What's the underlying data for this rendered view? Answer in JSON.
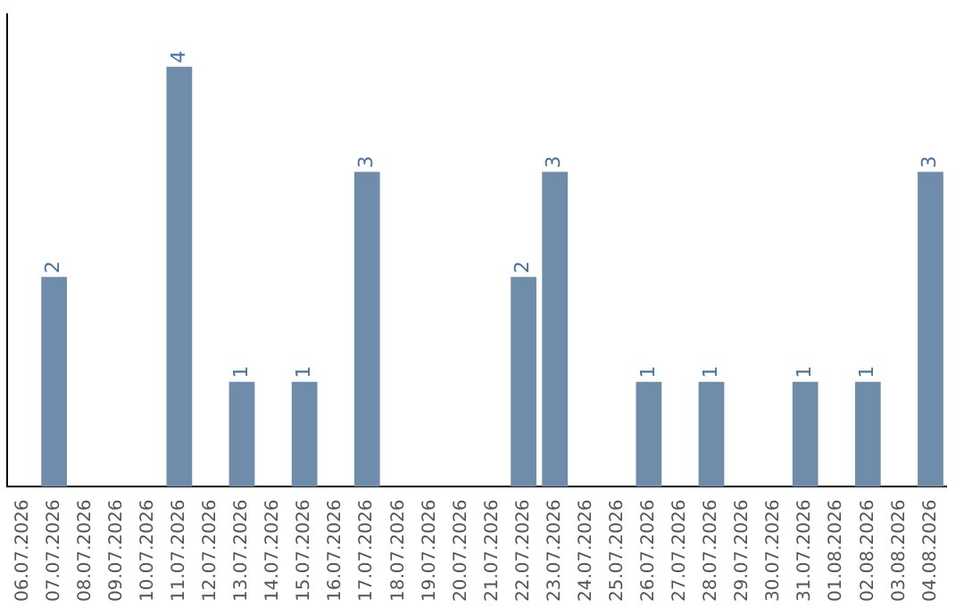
{
  "chart_data": {
    "type": "bar",
    "categories": [
      "06.07.2026",
      "07.07.2026",
      "08.07.2026",
      "09.07.2026",
      "10.07.2026",
      "11.07.2026",
      "12.07.2026",
      "13.07.2026",
      "14.07.2026",
      "15.07.2026",
      "16.07.2026",
      "17.07.2026",
      "18.07.2026",
      "19.07.2026",
      "20.07.2026",
      "21.07.2026",
      "22.07.2026",
      "23.07.2026",
      "24.07.2026",
      "25.07.2026",
      "26.07.2026",
      "27.07.2026",
      "28.07.2026",
      "29.07.2026",
      "30.07.2026",
      "31.07.2026",
      "01.08.2026",
      "02.08.2026",
      "03.08.2026",
      "04.08.2026"
    ],
    "values": [
      0,
      2,
      0,
      0,
      0,
      4,
      0,
      1,
      0,
      1,
      0,
      3,
      0,
      0,
      0,
      0,
      2,
      3,
      0,
      0,
      1,
      0,
      1,
      0,
      0,
      1,
      0,
      1,
      0,
      3
    ],
    "value_labels": [
      null,
      "2",
      null,
      null,
      null,
      "4",
      null,
      "1",
      null,
      "1",
      null,
      "3",
      null,
      null,
      null,
      null,
      "2",
      "3",
      null,
      null,
      "1",
      null,
      "1",
      null,
      null,
      "1",
      null,
      "1",
      null,
      "3"
    ],
    "color": "#6f8dab",
    "grid": false,
    "legend": false,
    "tick_labels": "x"
  }
}
